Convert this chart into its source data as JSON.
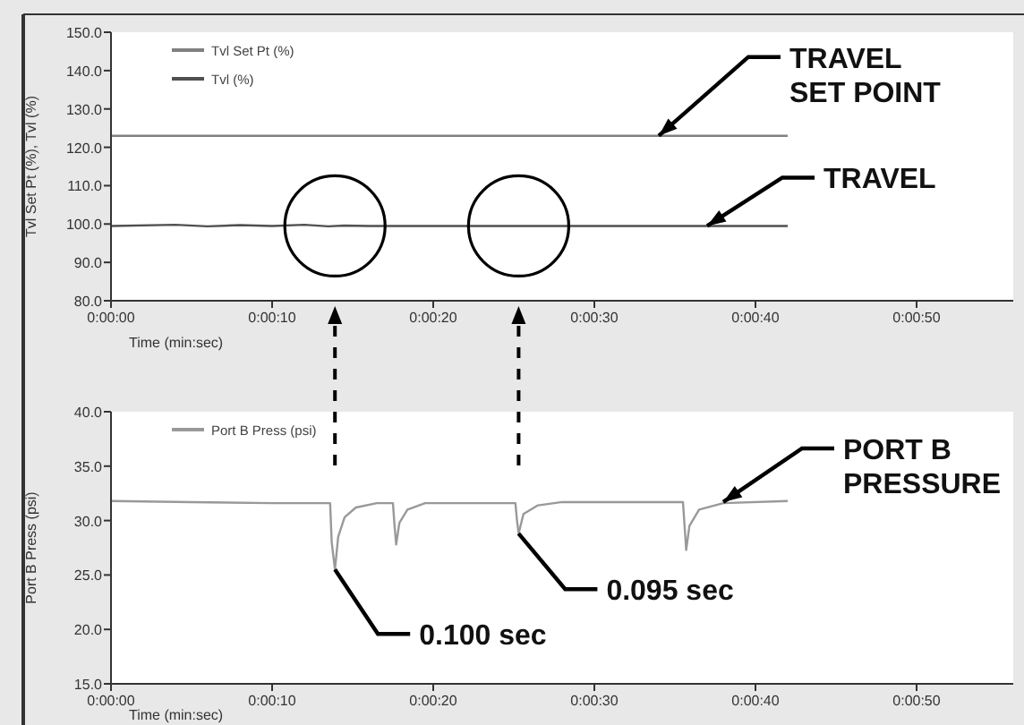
{
  "chart_data": [
    {
      "type": "line",
      "ylabel": "Tvl Set Pt (%), Tvl (%)",
      "xlabel": "Time (min:sec)",
      "xlim": [
        0,
        56
      ],
      "ylim": [
        80,
        150
      ],
      "xticks": [
        {
          "value": 0,
          "label": "0:00:00"
        },
        {
          "value": 10,
          "label": "0:00:10"
        },
        {
          "value": 20,
          "label": "0:00:20"
        },
        {
          "value": 30,
          "label": "0:00:30"
        },
        {
          "value": 40,
          "label": "0:00:40"
        },
        {
          "value": 50,
          "label": "0:00:50"
        }
      ],
      "yticks": [
        {
          "value": 80,
          "label": "80.0"
        },
        {
          "value": 90,
          "label": "90.0"
        },
        {
          "value": 100,
          "label": "100.0"
        },
        {
          "value": 110,
          "label": "110.0"
        },
        {
          "value": 120,
          "label": "120.0"
        },
        {
          "value": 130,
          "label": "130.0"
        },
        {
          "value": 140,
          "label": "140.0"
        },
        {
          "value": 150,
          "label": "150.0"
        }
      ],
      "legend": "top left",
      "grid": false,
      "series": [
        {
          "name": "Tvl Set Pt (%)",
          "color": "#808080",
          "x": [
            0,
            42
          ],
          "values": [
            123,
            123
          ]
        },
        {
          "name": "Tvl (%)",
          "color": "#505050",
          "x": [
            0,
            4,
            6,
            8,
            10,
            12,
            13.5,
            14.5,
            16,
            20,
            30,
            42
          ],
          "values": [
            99.5,
            99.8,
            99.4,
            99.7,
            99.5,
            99.8,
            99.4,
            99.6,
            99.5,
            99.5,
            99.5,
            99.5
          ]
        }
      ],
      "annotations": [
        {
          "text": "TRAVEL\nSET POINT",
          "x": 34,
          "y": 123
        },
        {
          "text": "TRAVEL",
          "x": 37,
          "y": 99.5
        }
      ]
    },
    {
      "type": "line",
      "ylabel": "Port B Press (psi)",
      "xlabel": "Time (min:sec)",
      "xlim": [
        0,
        56
      ],
      "ylim": [
        15,
        40
      ],
      "xticks": [
        {
          "value": 0,
          "label": "0:00:00"
        },
        {
          "value": 10,
          "label": "0:00:10"
        },
        {
          "value": 20,
          "label": "0:00:20"
        },
        {
          "value": 30,
          "label": "0:00:30"
        },
        {
          "value": 40,
          "label": "0:00:40"
        },
        {
          "value": 50,
          "label": "0:00:50"
        }
      ],
      "yticks": [
        {
          "value": 15,
          "label": "15.0"
        },
        {
          "value": 20,
          "label": "20.0"
        },
        {
          "value": 25,
          "label": "25.0"
        },
        {
          "value": 30,
          "label": "30.0"
        },
        {
          "value": 35,
          "label": "35.0"
        },
        {
          "value": 40,
          "label": "40.0"
        }
      ],
      "legend": "top left",
      "grid": false,
      "series": [
        {
          "name": "Port B Press (psi)",
          "color": "#999999",
          "x": [
            0,
            5,
            10,
            13.6,
            13.7,
            13.9,
            14.1,
            14.5,
            15.2,
            16.5,
            17.5,
            17.6,
            17.7,
            17.9,
            18.4,
            19.5,
            25.1,
            25.2,
            25.3,
            25.6,
            26.5,
            28,
            35.5,
            35.6,
            35.7,
            35.9,
            36.5,
            38,
            42
          ],
          "values": [
            31.8,
            31.7,
            31.6,
            31.6,
            28,
            25.5,
            28.5,
            30.3,
            31.2,
            31.6,
            31.6,
            29.5,
            27.8,
            29.8,
            31,
            31.6,
            31.6,
            30,
            28.8,
            30.6,
            31.4,
            31.7,
            31.7,
            29.5,
            27.3,
            29.5,
            31,
            31.6,
            31.8
          ]
        }
      ],
      "annotations": [
        {
          "text": "PORT B\nPRESSURE",
          "x": 38,
          "y": 31.7
        },
        {
          "text": "0.100 sec",
          "x": 13.9,
          "y": 25.5
        },
        {
          "text": "0.095 sec",
          "x": 25.3,
          "y": 28.8
        }
      ]
    }
  ]
}
